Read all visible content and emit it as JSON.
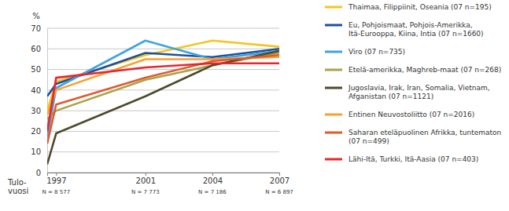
{
  "chart_data": {
    "type": "line",
    "y_label": "%",
    "x_label_lines": [
      "Tulo-",
      "vuosi"
    ],
    "x": [
      1996.6,
      1997,
      2001,
      2004,
      2007
    ],
    "xlim": [
      1996.6,
      2007
    ],
    "xticks": [
      1997,
      2001,
      2004,
      2007
    ],
    "x_sublabels": [
      "N = 8 577",
      "N = 7 773",
      "N = 7 186",
      "N = 6 897"
    ],
    "ylim": [
      0,
      70
    ],
    "yticks": [
      0,
      10,
      20,
      30,
      40,
      50,
      60,
      70
    ],
    "grid": true,
    "legend": "right",
    "series": [
      {
        "name": "Thaimaa, Filippiinit, Oseania (07 n=195)",
        "color": "#f4c51c",
        "values": [
          30,
          44,
          57,
          64,
          61
        ]
      },
      {
        "name": "Eu, Pohjoismaat, Pohjois-Amerikka, Itä-Eurooppa, Kiina, Intia (07 n=1660)",
        "color": "#1e4f9e",
        "values": [
          37,
          43,
          58,
          56,
          60
        ]
      },
      {
        "name": "Viro (07 n=735)",
        "color": "#41a3dc",
        "values": [
          17,
          41,
          64,
          55,
          59
        ]
      },
      {
        "name": "Etelä-amerikka, Maghreb-maat (07 n=268)",
        "color": "#a9a34c",
        "values": [
          26,
          30,
          45,
          52,
          58
        ]
      },
      {
        "name": "Jugoslavia, Irak, Iran, Somalia, Vietnam, Afganistan (07 n=1121)",
        "color": "#4d4a2b",
        "values": [
          4,
          19,
          37,
          52,
          59
        ]
      },
      {
        "name": "Entinen Neuvostoliitto (07 n=2016)",
        "color": "#f7a032",
        "values": [
          28,
          40,
          55,
          55,
          56
        ]
      },
      {
        "name": "Saharan eteläpuolinen Afrikka, tuntematon (07 n=499)",
        "color": "#e05a2b",
        "values": [
          14,
          33,
          46,
          54,
          57
        ]
      },
      {
        "name": "Lähi-Itä, Turkki, Itä-Aasia (07 n=403)",
        "color": "#e8262d",
        "values": [
          20,
          46,
          51,
          53,
          53
        ]
      }
    ]
  }
}
